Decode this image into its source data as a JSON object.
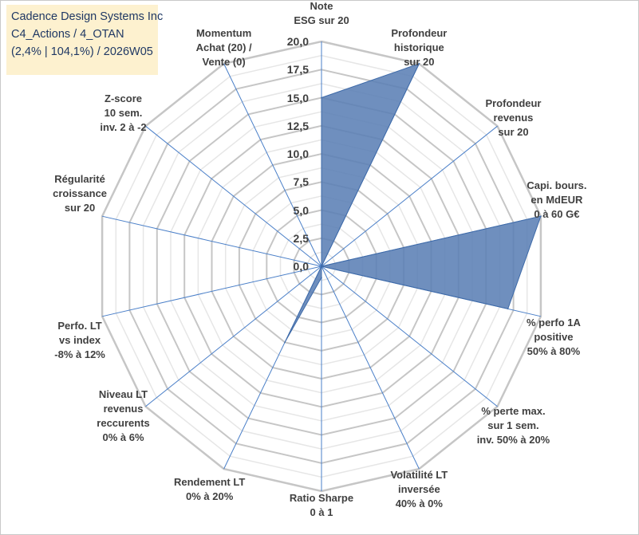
{
  "title_box": {
    "line1": "Cadence Design Systems Inc",
    "line2": "C4_Actions / 4_OTAN",
    "line3": "(2,4% | 104,1%) / 2026W05"
  },
  "chart_data": {
    "type": "radar",
    "title": "Cadence Design Systems Inc",
    "rmin": 0,
    "rmax": 20,
    "ticks": [
      "0,0",
      "2,5",
      "5,0",
      "7,5",
      "10,0",
      "12,5",
      "15,0",
      "17,5",
      "20,0"
    ],
    "axes": [
      "Note\nESG sur 20",
      "Profondeur\nhistorique\nsur 20",
      "Profondeur\nrevenus\nsur 20",
      "Capi. bours.\nen MdEUR\n0 à 60 G€",
      "% perfo 1A\npositive\n50% à 80%",
      "% perte max.\nsur 1 sem.\ninv. 50% à 20%",
      "Volatilité LT\ninversée\n40% à 0%",
      "Ratio Sharpe\n0 à 1",
      "Rendement LT\n0% à 20%",
      "Niveau LT\nrevenus\nreccurents\n0% à 6%",
      "Perfo. LT\nvs index\n-8% à 12%",
      "Régularité\ncroissance\nsur 20",
      "Z-score\n10 sem.\ninv. 2 à -2",
      "Momentum\nAchat (20) /\nVente (0)"
    ],
    "series": [
      {
        "name": "Cadence Design Systems Inc",
        "values": [
          15,
          20,
          0,
          20,
          17,
          0,
          0,
          1,
          7.5,
          0,
          0,
          0,
          0,
          0
        ]
      }
    ],
    "colors": {
      "fill": "#5b7fb5",
      "stroke": "#3e6aa8",
      "grid": "#d0d0d0",
      "spoke": "#4a7fc8"
    }
  }
}
